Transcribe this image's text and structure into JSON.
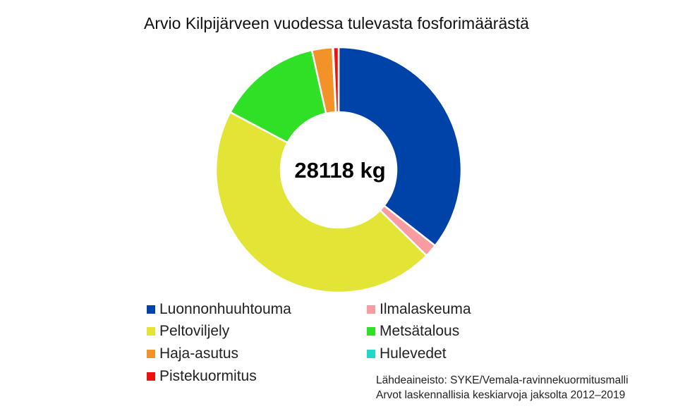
{
  "chart_data": {
    "type": "pie",
    "donut": true,
    "title": "Arvio Kilpijärveen vuodessa tulevasta fosforimäärästä",
    "center_label": "28118 kg",
    "categories": [
      "Luonnonhuuhtouma",
      "Ilmalaskeuma",
      "Peltoviljely",
      "Metsätalous",
      "Haja-asutus",
      "Hulevedet",
      "Pistekuormitus"
    ],
    "values": [
      10010,
      478,
      12794,
      3852,
      759,
      28,
      197
    ],
    "colors": [
      "#0043a8",
      "#f99ca1",
      "#e2e536",
      "#2fe026",
      "#f39229",
      "#22d7c8",
      "#ee1111"
    ],
    "start_angle": "top, clockwise",
    "legend_position": "bottom",
    "source_notes": [
      "Lähdeaineisto: SYKE/Vemala-ravinnekuormitusmalli",
      "Arvot laskennallisia keskiarvoja jaksolta 2012–2019"
    ]
  }
}
